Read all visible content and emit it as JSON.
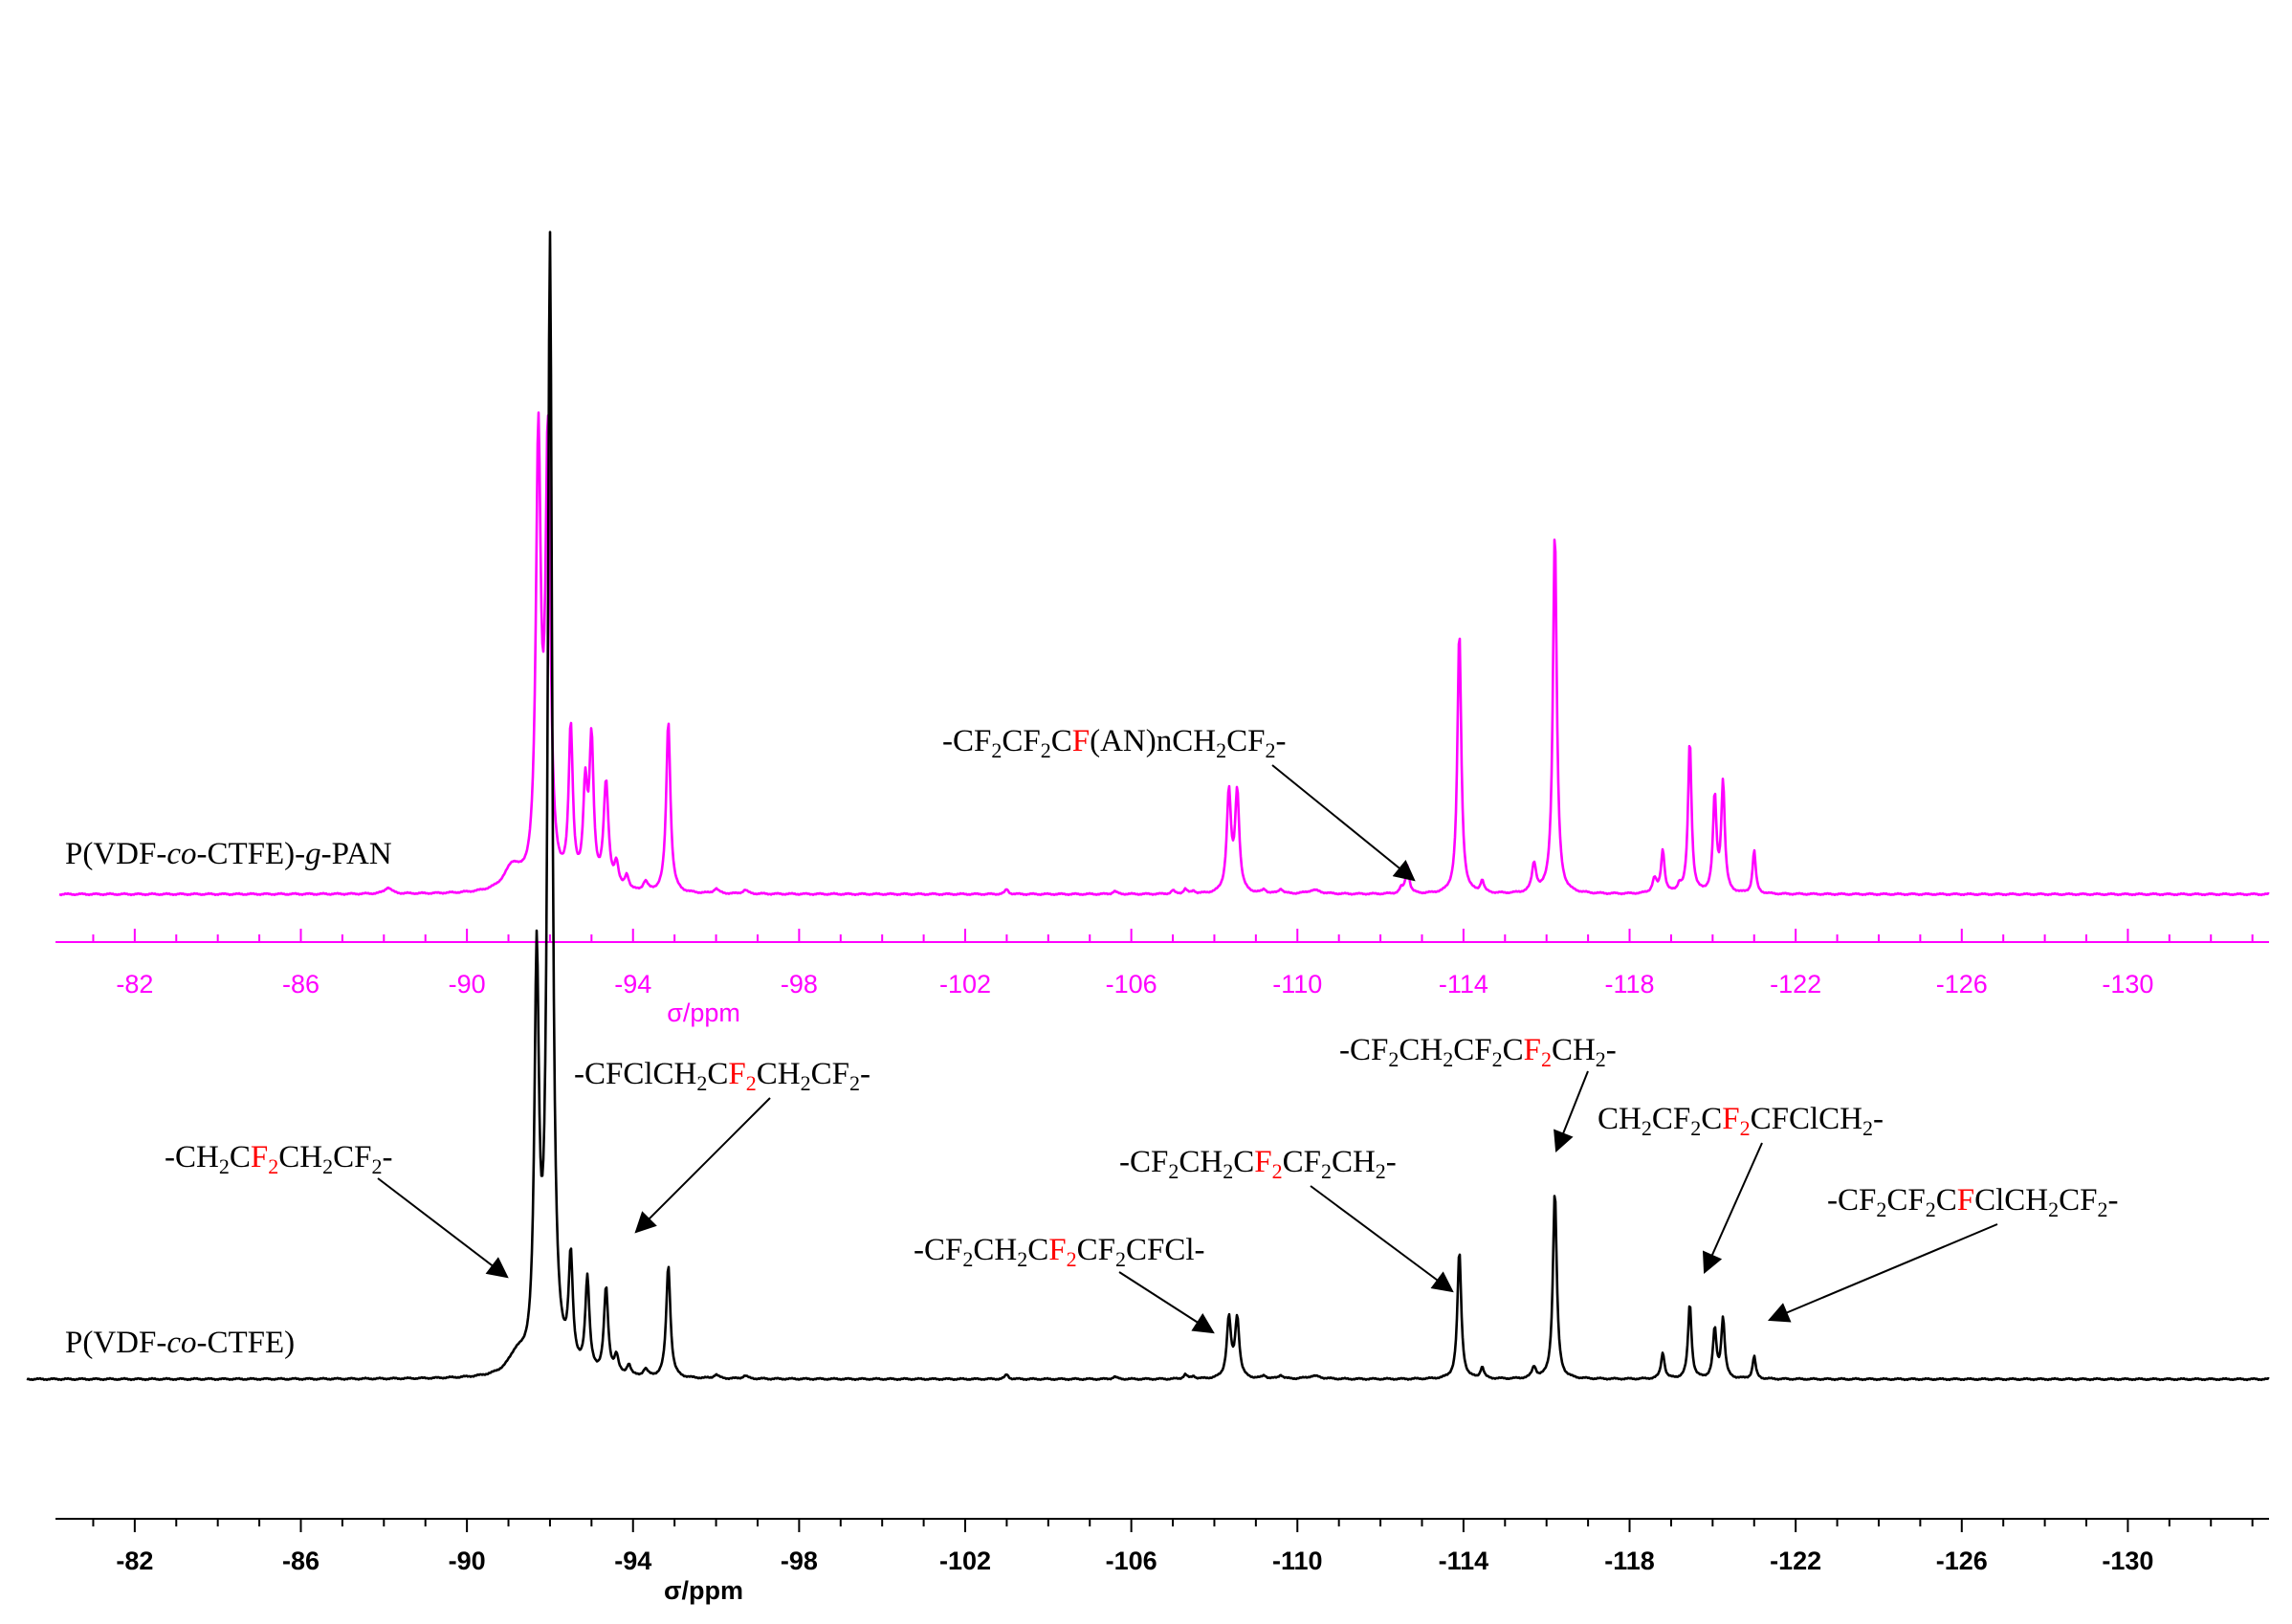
{
  "chart_data": {
    "type": "line",
    "xlabel": "σ/ppm",
    "xlim": [
      -79.4,
      -133.4
    ],
    "ticks": [
      -82,
      -86,
      -90,
      -94,
      -98,
      -102,
      -106,
      -110,
      -114,
      -118,
      -122,
      -126,
      -130
    ],
    "tick_labels": [
      "-82",
      "-86",
      "-90",
      "-94",
      "-98",
      "-102",
      "-106",
      "-110",
      "-114",
      "-118",
      "-122",
      "-126",
      "-130"
    ],
    "colors": {
      "top": "#ff00ff",
      "bottom": "#000000",
      "highlight": "#ff0000"
    },
    "series": [
      {
        "key": "top",
        "name": "P(VDF-co-CTFE)-g-PAN",
        "name_parts": [
          {
            "t": "P(VDF-",
            "s": "n"
          },
          {
            "t": "co",
            "s": "i"
          },
          {
            "t": "-CTFE)-",
            "s": "n"
          },
          {
            "t": "g",
            "s": "i"
          },
          {
            "t": "-PAN",
            "s": "n"
          }
        ],
        "peaks": [
          {
            "x": -88.1,
            "h": 0.013,
            "w": 0.1
          },
          {
            "x": -91.1,
            "h": 0.05,
            "w": 0.25
          },
          {
            "x": -91.72,
            "h": 0.92,
            "w": 0.07
          },
          {
            "x": -91.95,
            "h": 0.92,
            "w": 0.07
          },
          {
            "x": -92.5,
            "h": 0.33,
            "w": 0.06
          },
          {
            "x": -92.85,
            "h": 0.2,
            "w": 0.06
          },
          {
            "x": -93.0,
            "h": 0.3,
            "w": 0.06
          },
          {
            "x": -93.35,
            "h": 0.22,
            "w": 0.07
          },
          {
            "x": -93.6,
            "h": 0.05,
            "w": 0.06
          },
          {
            "x": -93.85,
            "h": 0.03,
            "w": 0.06
          },
          {
            "x": -94.3,
            "h": 0.02,
            "w": 0.07
          },
          {
            "x": -94.85,
            "h": 0.36,
            "w": 0.06
          },
          {
            "x": -96.0,
            "h": 0.01,
            "w": 0.07
          },
          {
            "x": -96.7,
            "h": 0.008,
            "w": 0.07
          },
          {
            "x": -103.0,
            "h": 0.01,
            "w": 0.05
          },
          {
            "x": -105.6,
            "h": 0.006,
            "w": 0.06
          },
          {
            "x": -107.0,
            "h": 0.007,
            "w": 0.05
          },
          {
            "x": -107.3,
            "h": 0.01,
            "w": 0.05
          },
          {
            "x": -107.5,
            "h": 0.006,
            "w": 0.05
          },
          {
            "x": -108.35,
            "h": 0.21,
            "w": 0.06
          },
          {
            "x": -108.55,
            "h": 0.21,
            "w": 0.06
          },
          {
            "x": -109.2,
            "h": 0.008,
            "w": 0.06
          },
          {
            "x": -109.6,
            "h": 0.01,
            "w": 0.06
          },
          {
            "x": -110.4,
            "h": 0.008,
            "w": 0.2
          },
          {
            "x": -112.5,
            "h": 0.01,
            "w": 0.05
          },
          {
            "x": -112.65,
            "h": 0.06,
            "w": 0.05
          },
          {
            "x": -113.9,
            "h": 0.55,
            "w": 0.055
          },
          {
            "x": -114.45,
            "h": 0.025,
            "w": 0.05
          },
          {
            "x": -115.7,
            "h": 0.06,
            "w": 0.06
          },
          {
            "x": -116.2,
            "h": 0.76,
            "w": 0.055
          },
          {
            "x": -118.6,
            "h": 0.03,
            "w": 0.06
          },
          {
            "x": -118.8,
            "h": 0.09,
            "w": 0.05
          },
          {
            "x": -119.2,
            "h": 0.015,
            "w": 0.05
          },
          {
            "x": -119.45,
            "h": 0.32,
            "w": 0.05
          },
          {
            "x": -120.05,
            "h": 0.2,
            "w": 0.05
          },
          {
            "x": -120.25,
            "h": 0.23,
            "w": 0.05
          },
          {
            "x": -121.0,
            "h": 0.09,
            "w": 0.045
          }
        ]
      },
      {
        "key": "bottom",
        "name": "P(VDF-co-CTFE)",
        "name_parts": [
          {
            "t": "P(VDF-",
            "s": "n"
          },
          {
            "t": "co",
            "s": "i"
          },
          {
            "t": "-CTFE)",
            "s": "n"
          }
        ],
        "peaks": [
          {
            "x": -91.2,
            "h": 0.05,
            "w": 0.25
          },
          {
            "x": -91.68,
            "h": 1.06,
            "w": 0.065
          },
          {
            "x": -92.0,
            "h": 3.0,
            "w": 0.065
          },
          {
            "x": -92.5,
            "h": 0.29,
            "w": 0.06
          },
          {
            "x": -92.9,
            "h": 0.25,
            "w": 0.06
          },
          {
            "x": -93.35,
            "h": 0.23,
            "w": 0.06
          },
          {
            "x": -93.6,
            "h": 0.05,
            "w": 0.06
          },
          {
            "x": -93.9,
            "h": 0.03,
            "w": 0.06
          },
          {
            "x": -94.3,
            "h": 0.02,
            "w": 0.07
          },
          {
            "x": -94.85,
            "h": 0.3,
            "w": 0.06
          },
          {
            "x": -96.0,
            "h": 0.01,
            "w": 0.07
          },
          {
            "x": -96.7,
            "h": 0.008,
            "w": 0.07
          },
          {
            "x": -103.0,
            "h": 0.012,
            "w": 0.05
          },
          {
            "x": -105.6,
            "h": 0.006,
            "w": 0.06
          },
          {
            "x": -107.3,
            "h": 0.012,
            "w": 0.05
          },
          {
            "x": -107.5,
            "h": 0.007,
            "w": 0.05
          },
          {
            "x": -108.35,
            "h": 0.16,
            "w": 0.06
          },
          {
            "x": -108.55,
            "h": 0.16,
            "w": 0.06
          },
          {
            "x": -109.2,
            "h": 0.008,
            "w": 0.06
          },
          {
            "x": -109.6,
            "h": 0.01,
            "w": 0.06
          },
          {
            "x": -110.4,
            "h": 0.008,
            "w": 0.2
          },
          {
            "x": -113.9,
            "h": 0.34,
            "w": 0.055
          },
          {
            "x": -114.45,
            "h": 0.03,
            "w": 0.05
          },
          {
            "x": -115.7,
            "h": 0.03,
            "w": 0.06
          },
          {
            "x": -116.2,
            "h": 0.5,
            "w": 0.055
          },
          {
            "x": -118.8,
            "h": 0.07,
            "w": 0.05
          },
          {
            "x": -119.45,
            "h": 0.2,
            "w": 0.05
          },
          {
            "x": -120.05,
            "h": 0.13,
            "w": 0.05
          },
          {
            "x": -120.25,
            "h": 0.16,
            "w": 0.05
          },
          {
            "x": -121.0,
            "h": 0.06,
            "w": 0.045
          }
        ]
      }
    ],
    "annotations": [
      {
        "series": "top",
        "parts": [
          {
            "t": "-CF",
            "s": "n"
          },
          {
            "t": "2",
            "s": "sub"
          },
          {
            "t": "CF",
            "s": "n"
          },
          {
            "t": "2",
            "s": "sub"
          },
          {
            "t": "C",
            "s": "n"
          },
          {
            "t": "F",
            "s": "red"
          },
          {
            "t": "(AN)nCH",
            "s": "n"
          },
          {
            "t": "2",
            "s": "sub"
          },
          {
            "t": "CF",
            "s": "n"
          },
          {
            "t": "2",
            "s": "sub"
          },
          {
            "t": "-",
            "s": "n"
          }
        ],
        "target_ppm": -112.65
      },
      {
        "series": "bottom",
        "parts": [
          {
            "t": "-CH",
            "s": "n"
          },
          {
            "t": "2",
            "s": "sub"
          },
          {
            "t": "C",
            "s": "n"
          },
          {
            "t": "F",
            "s": "red"
          },
          {
            "t": "2",
            "s": "redsub"
          },
          {
            "t": "CH",
            "s": "n"
          },
          {
            "t": "2",
            "s": "sub"
          },
          {
            "t": "CF",
            "s": "n"
          },
          {
            "t": "2",
            "s": "sub"
          },
          {
            "t": "-",
            "s": "n"
          }
        ],
        "target_ppm": -91.45
      },
      {
        "series": "bottom",
        "parts": [
          {
            "t": "-CFClCH",
            "s": "n"
          },
          {
            "t": "2",
            "s": "sub"
          },
          {
            "t": "C",
            "s": "n"
          },
          {
            "t": "F",
            "s": "red"
          },
          {
            "t": "2",
            "s": "redsub"
          },
          {
            "t": "CH",
            "s": "n"
          },
          {
            "t": "2",
            "s": "sub"
          },
          {
            "t": "CF",
            "s": "n"
          },
          {
            "t": "2",
            "s": "sub"
          },
          {
            "t": "-",
            "s": "n"
          }
        ],
        "target_ppm": -94.6
      },
      {
        "series": "bottom",
        "parts": [
          {
            "t": "-CF",
            "s": "n"
          },
          {
            "t": "2",
            "s": "sub"
          },
          {
            "t": "CH",
            "s": "n"
          },
          {
            "t": "2",
            "s": "sub"
          },
          {
            "t": "CF",
            "s": "n"
          },
          {
            "t": "2",
            "s": "sub"
          },
          {
            "t": "C",
            "s": "n"
          },
          {
            "t": "F",
            "s": "red"
          },
          {
            "t": "2",
            "s": "redsub"
          },
          {
            "t": "CH",
            "s": "n"
          },
          {
            "t": "2",
            "s": "sub"
          },
          {
            "t": "-",
            "s": "n"
          }
        ],
        "target_ppm": -116.1
      },
      {
        "series": "bottom",
        "parts": [
          {
            "t": "CH",
            "s": "n"
          },
          {
            "t": "2",
            "s": "sub"
          },
          {
            "t": "CF",
            "s": "n"
          },
          {
            "t": "2",
            "s": "sub"
          },
          {
            "t": "C",
            "s": "n"
          },
          {
            "t": "F",
            "s": "red"
          },
          {
            "t": "2",
            "s": "redsub"
          },
          {
            "t": "CFClCH",
            "s": "n"
          },
          {
            "t": "2",
            "s": "sub"
          },
          {
            "t": "-",
            "s": "n"
          }
        ],
        "target_ppm": -119.4
      },
      {
        "series": "bottom",
        "parts": [
          {
            "t": "-CF",
            "s": "n"
          },
          {
            "t": "2",
            "s": "sub"
          },
          {
            "t": "CH",
            "s": "n"
          },
          {
            "t": "2",
            "s": "sub"
          },
          {
            "t": "C",
            "s": "n"
          },
          {
            "t": "F",
            "s": "red"
          },
          {
            "t": "2",
            "s": "redsub"
          },
          {
            "t": "CF",
            "s": "n"
          },
          {
            "t": "2",
            "s": "sub"
          },
          {
            "t": "CH",
            "s": "n"
          },
          {
            "t": "2",
            "s": "sub"
          },
          {
            "t": "-",
            "s": "n"
          }
        ],
        "target_ppm": -113.85
      },
      {
        "series": "bottom",
        "parts": [
          {
            "t": "-CF",
            "s": "n"
          },
          {
            "t": "2",
            "s": "sub"
          },
          {
            "t": "CF",
            "s": "n"
          },
          {
            "t": "2",
            "s": "sub"
          },
          {
            "t": "C",
            "s": "n"
          },
          {
            "t": "F",
            "s": "red"
          },
          {
            "t": "ClCH",
            "s": "n"
          },
          {
            "t": "2",
            "s": "sub"
          },
          {
            "t": "CF",
            "s": "n"
          },
          {
            "t": "2",
            "s": "sub"
          },
          {
            "t": "-",
            "s": "n"
          }
        ],
        "target_ppm": -121.1
      },
      {
        "series": "bottom",
        "parts": [
          {
            "t": "-CF",
            "s": "n"
          },
          {
            "t": "2",
            "s": "sub"
          },
          {
            "t": "CH",
            "s": "n"
          },
          {
            "t": "2",
            "s": "sub"
          },
          {
            "t": "C",
            "s": "n"
          },
          {
            "t": "F",
            "s": "red"
          },
          {
            "t": "2",
            "s": "redsub"
          },
          {
            "t": "CF",
            "s": "n"
          },
          {
            "t": "2",
            "s": "sub"
          },
          {
            "t": "CFCl-",
            "s": "n"
          }
        ],
        "target_ppm": -108.3
      }
    ]
  }
}
